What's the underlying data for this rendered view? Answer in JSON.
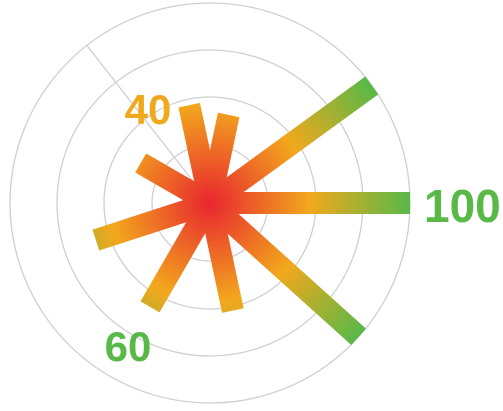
{
  "chart_data": {
    "type": "radial-bar",
    "title": "",
    "max_value": 100,
    "ring_count": 4,
    "colors": {
      "low": "#e8262f",
      "mid": "#f2a81d",
      "high": "#58b947",
      "grid": "#cfcfcf"
    },
    "bars": [
      {
        "angle_deg": 0,
        "value": 100
      },
      {
        "angle_deg": 36,
        "value": 100
      },
      {
        "angle_deg": 78,
        "value": 45
      },
      {
        "angle_deg": 102,
        "value": 50
      },
      {
        "angle_deg": 150,
        "value": 40
      },
      {
        "angle_deg": 198,
        "value": 60
      },
      {
        "angle_deg": 240,
        "value": 60
      },
      {
        "angle_deg": 282,
        "value": 55
      },
      {
        "angle_deg": 318,
        "value": 100
      }
    ],
    "labels": [
      {
        "text": "100",
        "value": 100,
        "angle_deg": 0
      },
      {
        "text": "40",
        "value": 40,
        "angle_deg": 122
      },
      {
        "text": "60",
        "value": 60,
        "angle_deg": 232
      }
    ]
  }
}
